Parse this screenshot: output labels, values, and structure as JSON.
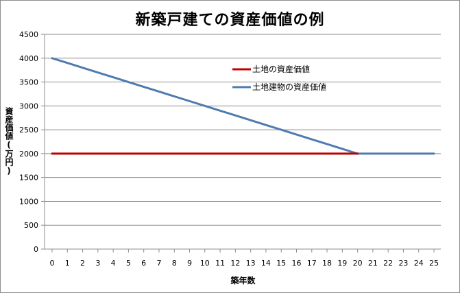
{
  "chart_data": {
    "type": "line",
    "title": "新築戸建ての資産価値の例",
    "xlabel": "築年数",
    "ylabel": "資産価値(万円)",
    "x": [
      0,
      1,
      2,
      3,
      4,
      5,
      6,
      7,
      8,
      9,
      10,
      11,
      12,
      13,
      14,
      15,
      16,
      17,
      18,
      19,
      20,
      21,
      22,
      23,
      24,
      25
    ],
    "xlim": [
      0,
      25
    ],
    "ylim": [
      0,
      4500
    ],
    "yticks": [
      0,
      500,
      1000,
      1500,
      2000,
      2500,
      3000,
      3500,
      4000,
      4500
    ],
    "grid": "horizontal",
    "legend_position": "inside-top",
    "series": [
      {
        "name": "土地の資産価値",
        "color": "#c00000",
        "values": [
          2000,
          2000,
          2000,
          2000,
          2000,
          2000,
          2000,
          2000,
          2000,
          2000,
          2000,
          2000,
          2000,
          2000,
          2000,
          2000,
          2000,
          2000,
          2000,
          2000,
          2000,
          null,
          null,
          null,
          null,
          null
        ]
      },
      {
        "name": "土地建物の資産価値",
        "color": "#4f7bb0",
        "values": [
          4000,
          3900,
          3800,
          3700,
          3600,
          3500,
          3400,
          3300,
          3200,
          3100,
          3000,
          2900,
          2800,
          2700,
          2600,
          2500,
          2400,
          2300,
          2200,
          2100,
          2000,
          2000,
          2000,
          2000,
          2000,
          2000
        ]
      }
    ]
  }
}
